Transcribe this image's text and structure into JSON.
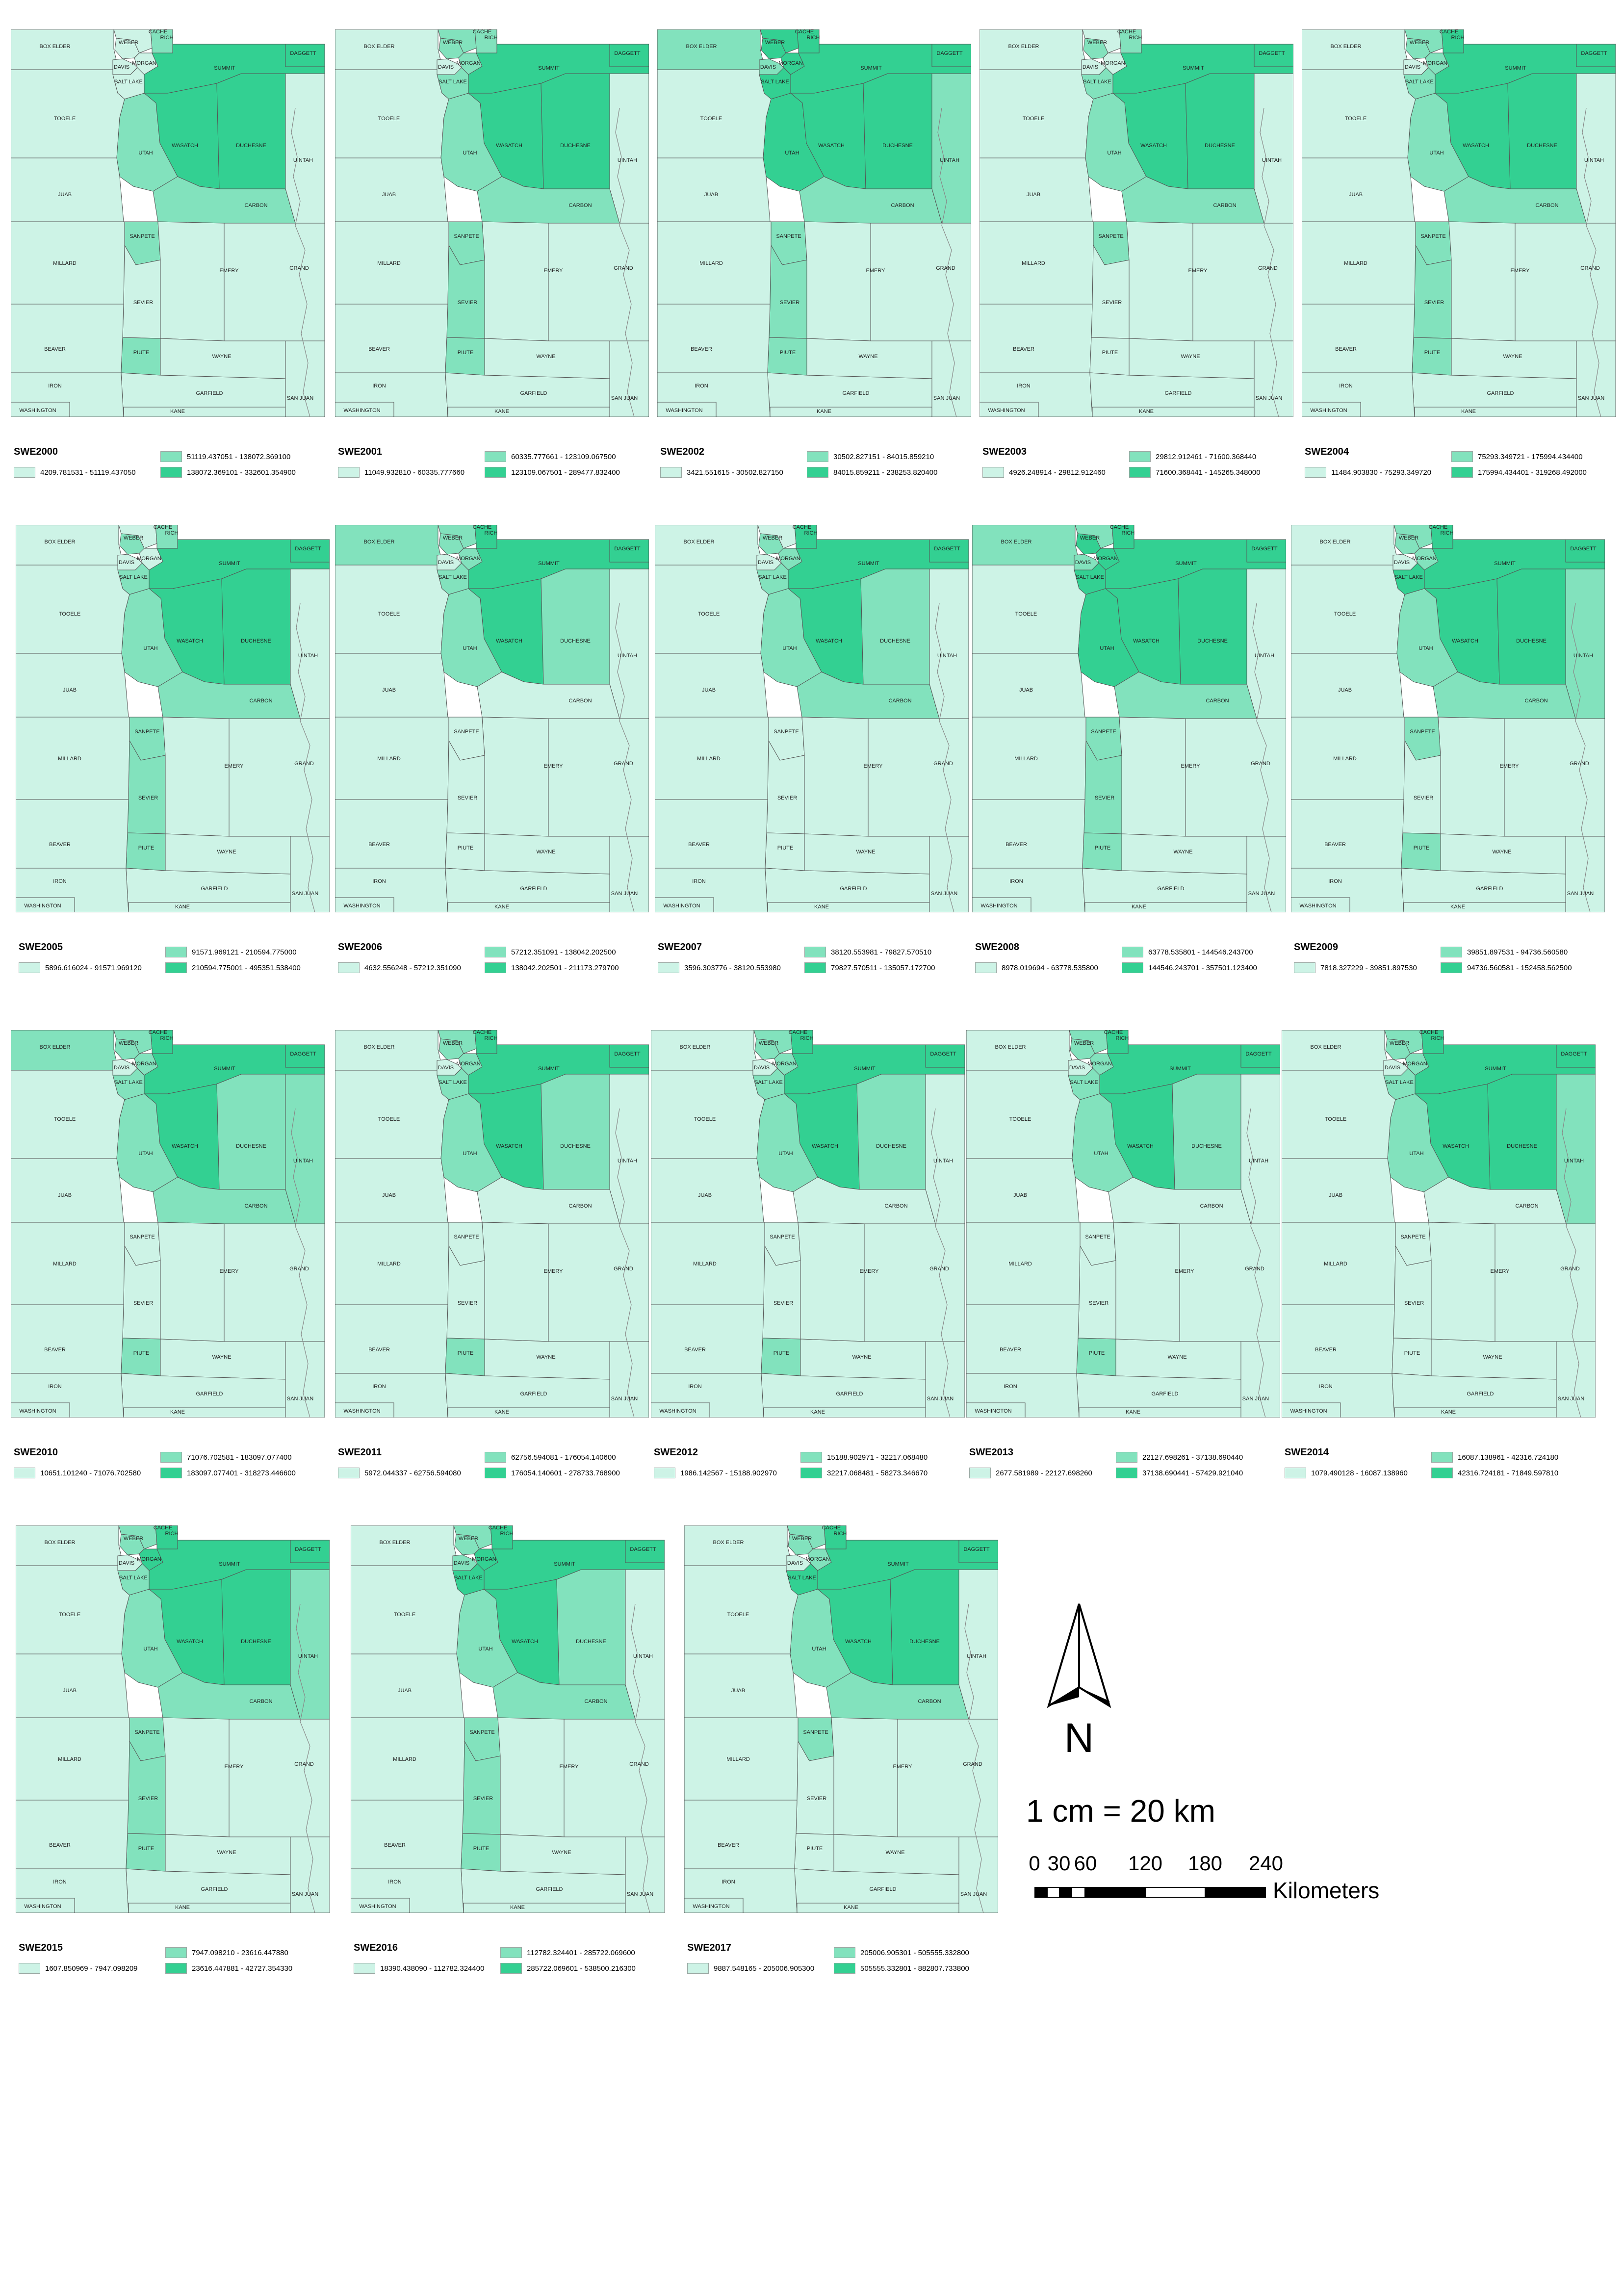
{
  "colors": {
    "class1": "#cdf3e6",
    "class2": "#82e2bd",
    "class3": "#33d092",
    "border": "#555555",
    "river": "#888888"
  },
  "counties": [
    "BOX ELDER",
    "CACHE",
    "RICH",
    "WEBER",
    "MORGAN",
    "DAVIS",
    "SALT LAKE",
    "SUMMIT",
    "DAGGETT",
    "TOOELE",
    "WASATCH",
    "DUCHESNE",
    "UINTAH",
    "UTAH",
    "JUAB",
    "CARBON",
    "SANPETE",
    "MILLARD",
    "EMERY",
    "GRAND",
    "SEVIER",
    "BEAVER",
    "PIUTE",
    "WAYNE",
    "IRON",
    "GARFIELD",
    "SAN JUAN",
    "WASHINGTON",
    "KANE"
  ],
  "panels": [
    {
      "title": "SWE2000",
      "range1": "4209.781531 - 51119.437050",
      "range2": "51119.437051 - 138072.369100",
      "range3": "138072.369101 - 332601.354900",
      "fills": {
        "BOX ELDER": 1,
        "CACHE": 1,
        "RICH": 2,
        "WEBER": 1,
        "MORGAN": 1,
        "DAVIS": 1,
        "SALT LAKE": 1,
        "SUMMIT": 3,
        "DAGGETT": 3,
        "TOOELE": 1,
        "WASATCH": 3,
        "DUCHESNE": 3,
        "UINTAH": 1,
        "UTAH": 2,
        "JUAB": 1,
        "CARBON": 2,
        "SANPETE": 2,
        "MILLARD": 1,
        "EMERY": 1,
        "GRAND": 1,
        "SEVIER": 1,
        "BEAVER": 1,
        "PIUTE": 2,
        "WAYNE": 1,
        "IRON": 1,
        "GARFIELD": 1,
        "SAN JUAN": 1,
        "WASHINGTON": 1,
        "KANE": 1
      }
    },
    {
      "title": "SWE2001",
      "range1": "11049.932810 - 60335.777660",
      "range2": "60335.777661 - 123109.067500",
      "range3": "123109.067501 - 289477.832400",
      "fills": {
        "BOX ELDER": 1,
        "CACHE": 2,
        "RICH": 2,
        "WEBER": 2,
        "MORGAN": 2,
        "DAVIS": 1,
        "SALT LAKE": 2,
        "SUMMIT": 3,
        "DAGGETT": 3,
        "TOOELE": 1,
        "WASATCH": 3,
        "DUCHESNE": 3,
        "UINTAH": 1,
        "UTAH": 2,
        "JUAB": 1,
        "CARBON": 2,
        "SANPETE": 2,
        "MILLARD": 1,
        "EMERY": 1,
        "GRAND": 1,
        "SEVIER": 2,
        "BEAVER": 1,
        "PIUTE": 2,
        "WAYNE": 1,
        "IRON": 1,
        "GARFIELD": 1,
        "SAN JUAN": 1,
        "WASHINGTON": 1,
        "KANE": 1
      }
    },
    {
      "title": "SWE2002",
      "range1": "3421.551615 - 30502.827150",
      "range2": "30502.827151 - 84015.859210",
      "range3": "84015.859211 - 238253.820400",
      "fills": {
        "BOX ELDER": 2,
        "CACHE": 3,
        "RICH": 3,
        "WEBER": 3,
        "MORGAN": 3,
        "DAVIS": 2,
        "SALT LAKE": 3,
        "SUMMIT": 3,
        "DAGGETT": 3,
        "TOOELE": 1,
        "WASATCH": 3,
        "DUCHESNE": 3,
        "UINTAH": 2,
        "UTAH": 3,
        "JUAB": 1,
        "CARBON": 2,
        "SANPETE": 2,
        "MILLARD": 1,
        "EMERY": 1,
        "GRAND": 1,
        "SEVIER": 2,
        "BEAVER": 1,
        "PIUTE": 2,
        "WAYNE": 1,
        "IRON": 1,
        "GARFIELD": 1,
        "SAN JUAN": 1,
        "WASHINGTON": 1,
        "KANE": 1
      }
    },
    {
      "title": "SWE2003",
      "range1": "4926.248914 - 29812.912460",
      "range2": "29812.912461 - 71600.368440",
      "range3": "71600.368441 - 145265.348000",
      "fills": {
        "BOX ELDER": 1,
        "CACHE": 1,
        "RICH": 2,
        "WEBER": 2,
        "MORGAN": 1,
        "DAVIS": 1,
        "SALT LAKE": 2,
        "SUMMIT": 3,
        "DAGGETT": 3,
        "TOOELE": 1,
        "WASATCH": 3,
        "DUCHESNE": 3,
        "UINTAH": 1,
        "UTAH": 2,
        "JUAB": 1,
        "CARBON": 2,
        "SANPETE": 2,
        "MILLARD": 1,
        "EMERY": 1,
        "GRAND": 1,
        "SEVIER": 1,
        "BEAVER": 1,
        "PIUTE": 1,
        "WAYNE": 1,
        "IRON": 1,
        "GARFIELD": 1,
        "SAN JUAN": 1,
        "WASHINGTON": 1,
        "KANE": 1
      }
    },
    {
      "title": "SWE2004",
      "range1": "11484.903830 - 75293.349720",
      "range2": "75293.349721 - 175994.434400",
      "range3": "175994.434401 - 319268.492000",
      "fills": {
        "BOX ELDER": 1,
        "CACHE": 2,
        "RICH": 3,
        "WEBER": 2,
        "MORGAN": 2,
        "DAVIS": 1,
        "SALT LAKE": 2,
        "SUMMIT": 3,
        "DAGGETT": 3,
        "TOOELE": 1,
        "WASATCH": 3,
        "DUCHESNE": 3,
        "UINTAH": 1,
        "UTAH": 2,
        "JUAB": 1,
        "CARBON": 2,
        "SANPETE": 2,
        "MILLARD": 1,
        "EMERY": 1,
        "GRAND": 1,
        "SEVIER": 2,
        "BEAVER": 1,
        "PIUTE": 2,
        "WAYNE": 1,
        "IRON": 1,
        "GARFIELD": 1,
        "SAN JUAN": 1,
        "WASHINGTON": 1,
        "KANE": 1
      }
    },
    {
      "title": "SWE2005",
      "range1": "5896.616024 - 91571.969120",
      "range2": "91571.969121 - 210594.775000",
      "range3": "210594.775001 - 495351.538400",
      "fills": {
        "BOX ELDER": 1,
        "CACHE": 1,
        "RICH": 2,
        "WEBER": 2,
        "MORGAN": 1,
        "DAVIS": 1,
        "SALT LAKE": 2,
        "SUMMIT": 3,
        "DAGGETT": 3,
        "TOOELE": 1,
        "WASATCH": 3,
        "DUCHESNE": 3,
        "UINTAH": 1,
        "UTAH": 2,
        "JUAB": 1,
        "CARBON": 2,
        "SANPETE": 2,
        "MILLARD": 1,
        "EMERY": 1,
        "GRAND": 1,
        "SEVIER": 2,
        "BEAVER": 1,
        "PIUTE": 2,
        "WAYNE": 1,
        "IRON": 1,
        "GARFIELD": 1,
        "SAN JUAN": 1,
        "WASHINGTON": 1,
        "KANE": 1
      }
    },
    {
      "title": "SWE2006",
      "range1": "4632.556248 - 57212.351090",
      "range2": "57212.351091 - 138042.202500",
      "range3": "138042.202501 - 211173.279700",
      "fills": {
        "BOX ELDER": 2,
        "CACHE": 2,
        "RICH": 3,
        "WEBER": 2,
        "MORGAN": 2,
        "DAVIS": 1,
        "SALT LAKE": 2,
        "SUMMIT": 3,
        "DAGGETT": 3,
        "TOOELE": 1,
        "WASATCH": 3,
        "DUCHESNE": 2,
        "UINTAH": 1,
        "UTAH": 2,
        "JUAB": 1,
        "CARBON": 1,
        "SANPETE": 1,
        "MILLARD": 1,
        "EMERY": 1,
        "GRAND": 1,
        "SEVIER": 1,
        "BEAVER": 1,
        "PIUTE": 1,
        "WAYNE": 1,
        "IRON": 1,
        "GARFIELD": 1,
        "SAN JUAN": 1,
        "WASHINGTON": 1,
        "KANE": 1
      }
    },
    {
      "title": "SWE2007",
      "range1": "3596.303776 - 38120.553980",
      "range2": "38120.553981 - 79827.570510",
      "range3": "79827.570511 - 135057.172700",
      "fills": {
        "BOX ELDER": 1,
        "CACHE": 1,
        "RICH": 3,
        "WEBER": 2,
        "MORGAN": 2,
        "DAVIS": 1,
        "SALT LAKE": 2,
        "SUMMIT": 3,
        "DAGGETT": 3,
        "TOOELE": 1,
        "WASATCH": 3,
        "DUCHESNE": 2,
        "UINTAH": 1,
        "UTAH": 2,
        "JUAB": 1,
        "CARBON": 2,
        "SANPETE": 1,
        "MILLARD": 1,
        "EMERY": 1,
        "GRAND": 1,
        "SEVIER": 1,
        "BEAVER": 1,
        "PIUTE": 1,
        "WAYNE": 1,
        "IRON": 1,
        "GARFIELD": 1,
        "SAN JUAN": 1,
        "WASHINGTON": 1,
        "KANE": 1
      }
    },
    {
      "title": "SWE2008",
      "range1": "8978.019694 - 63778.535800",
      "range2": "63778.535801 - 144546.243700",
      "range3": "144546.243701 - 357501.123400",
      "fills": {
        "BOX ELDER": 2,
        "CACHE": 2,
        "RICH": 3,
        "WEBER": 3,
        "MORGAN": 3,
        "DAVIS": 2,
        "SALT LAKE": 3,
        "SUMMIT": 3,
        "DAGGETT": 3,
        "TOOELE": 1,
        "WASATCH": 3,
        "DUCHESNE": 3,
        "UINTAH": 1,
        "UTAH": 3,
        "JUAB": 1,
        "CARBON": 2,
        "SANPETE": 2,
        "MILLARD": 1,
        "EMERY": 1,
        "GRAND": 1,
        "SEVIER": 2,
        "BEAVER": 1,
        "PIUTE": 2,
        "WAYNE": 1,
        "IRON": 1,
        "GARFIELD": 1,
        "SAN JUAN": 1,
        "WASHINGTON": 1,
        "KANE": 1
      }
    },
    {
      "title": "SWE2009",
      "range1": "7818.327229 - 39851.897530",
      "range2": "39851.897531 - 94736.560580",
      "range3": "94736.560581 - 152458.562500",
      "fills": {
        "BOX ELDER": 1,
        "CACHE": 2,
        "RICH": 3,
        "WEBER": 2,
        "MORGAN": 2,
        "DAVIS": 1,
        "SALT LAKE": 3,
        "SUMMIT": 3,
        "DAGGETT": 3,
        "TOOELE": 1,
        "WASATCH": 3,
        "DUCHESNE": 3,
        "UINTAH": 2,
        "UTAH": 2,
        "JUAB": 1,
        "CARBON": 2,
        "SANPETE": 2,
        "MILLARD": 1,
        "EMERY": 1,
        "GRAND": 1,
        "SEVIER": 1,
        "BEAVER": 1,
        "PIUTE": 2,
        "WAYNE": 1,
        "IRON": 1,
        "GARFIELD": 1,
        "SAN JUAN": 1,
        "WASHINGTON": 1,
        "KANE": 1
      }
    },
    {
      "title": "SWE2010",
      "range1": "10651.101240 - 71076.702580",
      "range2": "71076.702581 - 183097.077400",
      "range3": "183097.077401 - 318273.446600",
      "fills": {
        "BOX ELDER": 2,
        "CACHE": 2,
        "RICH": 3,
        "WEBER": 2,
        "MORGAN": 2,
        "DAVIS": 1,
        "SALT LAKE": 2,
        "SUMMIT": 3,
        "DAGGETT": 3,
        "TOOELE": 1,
        "WASATCH": 3,
        "DUCHESNE": 2,
        "UINTAH": 2,
        "UTAH": 2,
        "JUAB": 1,
        "CARBON": 2,
        "SANPETE": 1,
        "MILLARD": 1,
        "EMERY": 1,
        "GRAND": 1,
        "SEVIER": 1,
        "BEAVER": 1,
        "PIUTE": 2,
        "WAYNE": 1,
        "IRON": 1,
        "GARFIELD": 1,
        "SAN JUAN": 1,
        "WASHINGTON": 1,
        "KANE": 1
      }
    },
    {
      "title": "SWE2011",
      "range1": "5972.044337 - 62756.594080",
      "range2": "62756.594081 - 176054.140600",
      "range3": "176054.140601 - 278733.768900",
      "fills": {
        "BOX ELDER": 1,
        "CACHE": 2,
        "RICH": 3,
        "WEBER": 2,
        "MORGAN": 2,
        "DAVIS": 1,
        "SALT LAKE": 2,
        "SUMMIT": 3,
        "DAGGETT": 3,
        "TOOELE": 1,
        "WASATCH": 3,
        "DUCHESNE": 2,
        "UINTAH": 1,
        "UTAH": 2,
        "JUAB": 1,
        "CARBON": 1,
        "SANPETE": 1,
        "MILLARD": 1,
        "EMERY": 1,
        "GRAND": 1,
        "SEVIER": 1,
        "BEAVER": 1,
        "PIUTE": 2,
        "WAYNE": 1,
        "IRON": 1,
        "GARFIELD": 1,
        "SAN JUAN": 1,
        "WASHINGTON": 1,
        "KANE": 1
      }
    },
    {
      "title": "SWE2012",
      "range1": "1986.142567 - 15188.902970",
      "range2": "15188.902971 - 32217.068480",
      "range3": "32217.068481 - 58273.346670",
      "fills": {
        "BOX ELDER": 1,
        "CACHE": 2,
        "RICH": 3,
        "WEBER": 2,
        "MORGAN": 2,
        "DAVIS": 1,
        "SALT LAKE": 2,
        "SUMMIT": 3,
        "DAGGETT": 3,
        "TOOELE": 1,
        "WASATCH": 3,
        "DUCHESNE": 2,
        "UINTAH": 1,
        "UTAH": 2,
        "JUAB": 1,
        "CARBON": 1,
        "SANPETE": 1,
        "MILLARD": 1,
        "EMERY": 1,
        "GRAND": 1,
        "SEVIER": 1,
        "BEAVER": 1,
        "PIUTE": 2,
        "WAYNE": 1,
        "IRON": 1,
        "GARFIELD": 1,
        "SAN JUAN": 1,
        "WASHINGTON": 1,
        "KANE": 1
      }
    },
    {
      "title": "SWE2013",
      "range1": "2677.581989 - 22127.698260",
      "range2": "22127.698261 - 37138.690440",
      "range3": "37138.690441 - 57429.921040",
      "fills": {
        "BOX ELDER": 1,
        "CACHE": 2,
        "RICH": 3,
        "WEBER": 2,
        "MORGAN": 2,
        "DAVIS": 1,
        "SALT LAKE": 2,
        "SUMMIT": 3,
        "DAGGETT": 3,
        "TOOELE": 1,
        "WASATCH": 3,
        "DUCHESNE": 2,
        "UINTAH": 1,
        "UTAH": 2,
        "JUAB": 1,
        "CARBON": 1,
        "SANPETE": 1,
        "MILLARD": 1,
        "EMERY": 1,
        "GRAND": 1,
        "SEVIER": 1,
        "BEAVER": 1,
        "PIUTE": 2,
        "WAYNE": 1,
        "IRON": 1,
        "GARFIELD": 1,
        "SAN JUAN": 1,
        "WASHINGTON": 1,
        "KANE": 1
      }
    },
    {
      "title": "SWE2014",
      "range1": "1079.490128 - 16087.138960",
      "range2": "16087.138961 - 42316.724180",
      "range3": "42316.724181 - 71849.597810",
      "fills": {
        "BOX ELDER": 1,
        "CACHE": 2,
        "RICH": 3,
        "WEBER": 2,
        "MORGAN": 2,
        "DAVIS": 1,
        "SALT LAKE": 2,
        "SUMMIT": 3,
        "DAGGETT": 3,
        "TOOELE": 1,
        "WASATCH": 3,
        "DUCHESNE": 3,
        "UINTAH": 2,
        "UTAH": 2,
        "JUAB": 1,
        "CARBON": 1,
        "SANPETE": 1,
        "MILLARD": 1,
        "EMERY": 1,
        "GRAND": 1,
        "SEVIER": 1,
        "BEAVER": 1,
        "PIUTE": 1,
        "WAYNE": 1,
        "IRON": 1,
        "GARFIELD": 1,
        "SAN JUAN": 1,
        "WASHINGTON": 1,
        "KANE": 1
      }
    },
    {
      "title": "SWE2015",
      "range1": "1607.850969 - 7947.098209",
      "range2": "7947.098210 - 23616.447880",
      "range3": "23616.447881 - 42727.354330",
      "fills": {
        "BOX ELDER": 1,
        "CACHE": 2,
        "RICH": 3,
        "WEBER": 2,
        "MORGAN": 3,
        "DAVIS": 1,
        "SALT LAKE": 2,
        "SUMMIT": 3,
        "DAGGETT": 3,
        "TOOELE": 1,
        "WASATCH": 3,
        "DUCHESNE": 3,
        "UINTAH": 2,
        "UTAH": 2,
        "JUAB": 1,
        "CARBON": 2,
        "SANPETE": 2,
        "MILLARD": 1,
        "EMERY": 1,
        "GRAND": 1,
        "SEVIER": 2,
        "BEAVER": 1,
        "PIUTE": 2,
        "WAYNE": 1,
        "IRON": 1,
        "GARFIELD": 1,
        "SAN JUAN": 1,
        "WASHINGTON": 1,
        "KANE": 1
      }
    },
    {
      "title": "SWE2016",
      "range1": "18390.438090 - 112782.324400",
      "range2": "112782.324401 - 285722.069600",
      "range3": "285722.069601 - 538500.216300",
      "fills": {
        "BOX ELDER": 1,
        "CACHE": 2,
        "RICH": 3,
        "WEBER": 2,
        "MORGAN": 3,
        "DAVIS": 2,
        "SALT LAKE": 3,
        "SUMMIT": 3,
        "DAGGETT": 3,
        "TOOELE": 1,
        "WASATCH": 3,
        "DUCHESNE": 2,
        "UINTAH": 1,
        "UTAH": 2,
        "JUAB": 1,
        "CARBON": 2,
        "SANPETE": 2,
        "MILLARD": 1,
        "EMERY": 1,
        "GRAND": 1,
        "SEVIER": 2,
        "BEAVER": 1,
        "PIUTE": 2,
        "WAYNE": 1,
        "IRON": 1,
        "GARFIELD": 1,
        "SAN JUAN": 1,
        "WASHINGTON": 1,
        "KANE": 1
      }
    },
    {
      "title": "SWE2017",
      "range1": "9887.548165 - 205006.905300",
      "range2": "205006.905301 - 505555.332800",
      "range3": "505555.332801 - 882807.733800",
      "fills": {
        "BOX ELDER": 1,
        "CACHE": 2,
        "RICH": 3,
        "WEBER": 2,
        "MORGAN": 2,
        "DAVIS": 1,
        "SALT LAKE": 3,
        "SUMMIT": 3,
        "DAGGETT": 3,
        "TOOELE": 1,
        "WASATCH": 3,
        "DUCHESNE": 3,
        "UINTAH": 1,
        "UTAH": 2,
        "JUAB": 1,
        "CARBON": 2,
        "SANPETE": 2,
        "MILLARD": 1,
        "EMERY": 1,
        "GRAND": 1,
        "SEVIER": 1,
        "BEAVER": 1,
        "PIUTE": 1,
        "WAYNE": 1,
        "IRON": 1,
        "GARFIELD": 1,
        "SAN JUAN": 1,
        "WASHINGTON": 1,
        "KANE": 1
      }
    }
  ],
  "north_label": "N",
  "scale_text": "1 cm = 20 km",
  "scale_ticks": [
    "0",
    "30",
    "60",
    "120",
    "180",
    "240"
  ],
  "scale_units": "Kilometers"
}
